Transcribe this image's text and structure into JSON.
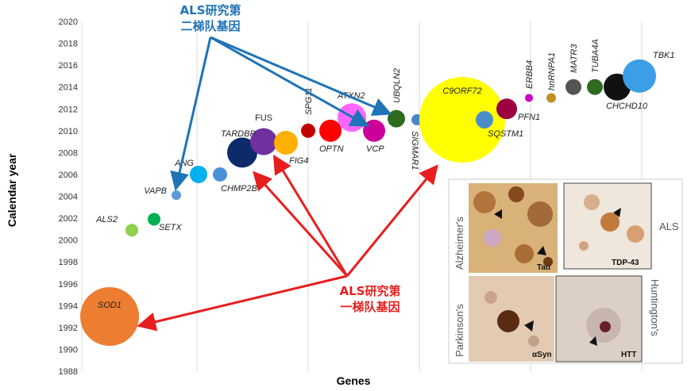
{
  "chart_data": {
    "type": "scatter",
    "xlabel": "Genes",
    "ylabel": "Calendar year",
    "ylim": [
      1988,
      2020
    ],
    "yticks": [
      1988,
      1990,
      1992,
      1994,
      1996,
      1998,
      2000,
      2002,
      2004,
      2006,
      2008,
      2010,
      2012,
      2014,
      2016,
      2018,
      2020
    ],
    "grid": "vertical",
    "points": [
      {
        "gene": "SOD1",
        "year": 1993,
        "color": "#ed7d31",
        "size": "large"
      },
      {
        "gene": "ALS2",
        "year": 2001,
        "color": "#92d050",
        "size": "small"
      },
      {
        "gene": "SETX",
        "year": 2002,
        "color": "#00b050",
        "size": "small"
      },
      {
        "gene": "VAPB",
        "year": 2004,
        "color": "#5b9bd5",
        "size": "tiny"
      },
      {
        "gene": "ANG",
        "year": 2006,
        "color": "#00b0f0",
        "size": "small"
      },
      {
        "gene": "CHMP2B",
        "year": 2006,
        "color": "#4a90d9",
        "size": "small"
      },
      {
        "gene": "TARDBP",
        "year": 2008,
        "color": "#0d2a6b",
        "size": "medium"
      },
      {
        "gene": "FUS",
        "year": 2009,
        "color": "#7030a0",
        "size": "medium"
      },
      {
        "gene": "FIG4",
        "year": 2009,
        "color": "#ffb000",
        "size": "medium"
      },
      {
        "gene": "SPG11",
        "year": 2010,
        "color": "#c00000",
        "size": "small"
      },
      {
        "gene": "OPTN",
        "year": 2010,
        "color": "#ff0000",
        "size": "medium"
      },
      {
        "gene": "ATXN2",
        "year": 2011,
        "color": "#ff66ff",
        "size": "medium"
      },
      {
        "gene": "VCP",
        "year": 2010,
        "color": "#cc0099",
        "size": "medium"
      },
      {
        "gene": "UBQLN2",
        "year": 2011,
        "color": "#2e6b1f",
        "size": "small"
      },
      {
        "gene": "SIGMAR1",
        "year": 2011,
        "color": "#4a86c8",
        "size": "tiny"
      },
      {
        "gene": "C9ORF72",
        "year": 2011,
        "color": "#ffff00",
        "size": "xlarge"
      },
      {
        "gene": "SQSTM1",
        "year": 2011,
        "color": "#4a8ec8",
        "size": "small"
      },
      {
        "gene": "PFN1",
        "year": 2012,
        "color": "#9b0040",
        "size": "small"
      },
      {
        "gene": "ERBB4",
        "year": 2013,
        "color": "#cc00cc",
        "size": "tiny"
      },
      {
        "gene": "hnRNPA1",
        "year": 2013,
        "color": "#c09020",
        "size": "tiny"
      },
      {
        "gene": "MATR3",
        "year": 2014,
        "color": "#555555",
        "size": "small"
      },
      {
        "gene": "TUBA4A",
        "year": 2014,
        "color": "#2e6b1f",
        "size": "small"
      },
      {
        "gene": "CHCHD10",
        "year": 2014,
        "color": "#111111",
        "size": "medium"
      },
      {
        "gene": "TBK1",
        "year": 2015,
        "color": "#3d9ee8",
        "size": "medium"
      }
    ]
  },
  "annotations": {
    "second_tier": {
      "line1": "ALS研究第",
      "line2": "二梯队基因",
      "color": "#1f73b7"
    },
    "first_tier": {
      "line1": "ALS研究第",
      "line2": "一梯队基因",
      "color": "#e81e1e"
    }
  },
  "inset": {
    "panels": {
      "alzheimers": "Alzheimer's",
      "als": "ALS",
      "parkinsons": "Parkinson's",
      "huntingtons": "Huntington's"
    },
    "stains": {
      "tau": "Tau",
      "tdp43": "TDP-43",
      "asyn": "αSyn",
      "htt": "HTT"
    }
  }
}
